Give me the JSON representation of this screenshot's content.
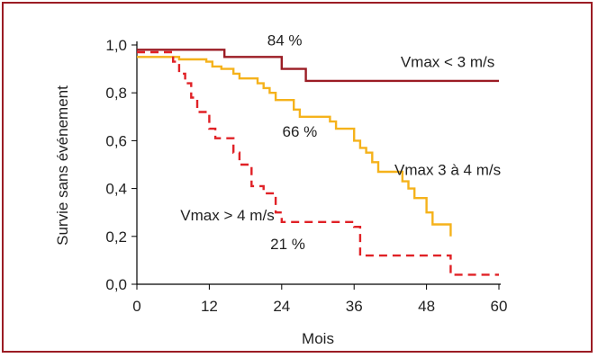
{
  "chart_data": {
    "type": "line",
    "title": "",
    "xlabel": "Mois",
    "ylabel": "Survie sans événement",
    "xlim": [
      0,
      60
    ],
    "ylim": [
      0,
      1.0
    ],
    "x_ticks": [
      0,
      12,
      24,
      36,
      48,
      60
    ],
    "y_ticks": [
      0.0,
      0.2,
      0.4,
      0.6,
      0.8,
      1.0
    ],
    "x_tick_labels": [
      "0",
      "12",
      "24",
      "36",
      "48",
      "60"
    ],
    "y_tick_labels": [
      "0,0",
      "0,2",
      "0,4",
      "0,6",
      "0,8",
      "1,0"
    ],
    "grid": false,
    "frame_color": "#9b1c24",
    "series": [
      {
        "name": "Vmax < 3 m/s",
        "color": "#9b1c24",
        "style": "solid",
        "steps": [
          [
            0,
            0.98
          ],
          [
            14.5,
            0.98
          ],
          [
            14.5,
            0.95
          ],
          [
            24,
            0.95
          ],
          [
            24,
            0.9
          ],
          [
            28,
            0.9
          ],
          [
            28,
            0.85
          ],
          [
            60,
            0.85
          ]
        ]
      },
      {
        "name": "Vmax 3 à 4 m/s",
        "color": "#f5b21b",
        "style": "solid",
        "steps": [
          [
            0,
            0.95
          ],
          [
            7,
            0.95
          ],
          [
            7,
            0.94
          ],
          [
            11.5,
            0.94
          ],
          [
            11.5,
            0.93
          ],
          [
            12.5,
            0.93
          ],
          [
            12.5,
            0.91
          ],
          [
            14,
            0.91
          ],
          [
            14,
            0.9
          ],
          [
            16,
            0.9
          ],
          [
            16,
            0.88
          ],
          [
            17,
            0.88
          ],
          [
            17,
            0.86
          ],
          [
            20,
            0.86
          ],
          [
            20,
            0.84
          ],
          [
            21,
            0.84
          ],
          [
            21,
            0.82
          ],
          [
            22,
            0.82
          ],
          [
            22,
            0.8
          ],
          [
            23,
            0.8
          ],
          [
            23,
            0.77
          ],
          [
            26,
            0.77
          ],
          [
            26,
            0.73
          ],
          [
            27,
            0.73
          ],
          [
            27,
            0.7
          ],
          [
            32,
            0.7
          ],
          [
            32,
            0.68
          ],
          [
            33,
            0.68
          ],
          [
            33,
            0.65
          ],
          [
            36,
            0.65
          ],
          [
            36,
            0.6
          ],
          [
            37,
            0.6
          ],
          [
            37,
            0.57
          ],
          [
            38,
            0.57
          ],
          [
            38,
            0.55
          ],
          [
            39,
            0.55
          ],
          [
            39,
            0.51
          ],
          [
            40,
            0.51
          ],
          [
            40,
            0.47
          ],
          [
            44,
            0.47
          ],
          [
            44,
            0.43
          ],
          [
            45,
            0.43
          ],
          [
            45,
            0.4
          ],
          [
            46,
            0.4
          ],
          [
            46,
            0.36
          ],
          [
            48,
            0.36
          ],
          [
            48,
            0.3
          ],
          [
            49,
            0.3
          ],
          [
            49,
            0.25
          ],
          [
            52,
            0.25
          ],
          [
            52,
            0.2
          ]
        ]
      },
      {
        "name": "Vmax > 4 m/s",
        "color": "#e02126",
        "style": "dashed",
        "steps": [
          [
            0,
            0.97
          ],
          [
            6,
            0.97
          ],
          [
            6,
            0.93
          ],
          [
            7,
            0.93
          ],
          [
            7,
            0.88
          ],
          [
            8,
            0.88
          ],
          [
            8,
            0.84
          ],
          [
            9,
            0.84
          ],
          [
            9,
            0.78
          ],
          [
            10,
            0.78
          ],
          [
            10,
            0.72
          ],
          [
            12,
            0.72
          ],
          [
            12,
            0.65
          ],
          [
            13,
            0.65
          ],
          [
            13,
            0.61
          ],
          [
            16,
            0.61
          ],
          [
            16,
            0.55
          ],
          [
            17,
            0.55
          ],
          [
            17,
            0.5
          ],
          [
            19,
            0.5
          ],
          [
            19,
            0.41
          ],
          [
            21,
            0.41
          ],
          [
            21,
            0.38
          ],
          [
            23,
            0.38
          ],
          [
            23,
            0.3
          ],
          [
            24,
            0.3
          ],
          [
            24,
            0.26
          ],
          [
            36,
            0.26
          ],
          [
            36,
            0.24
          ],
          [
            37,
            0.24
          ],
          [
            37,
            0.12
          ],
          [
            52,
            0.12
          ],
          [
            52,
            0.04
          ],
          [
            60,
            0.04
          ]
        ]
      }
    ],
    "annotations": [
      {
        "text": "84 %",
        "x": 24.5,
        "y": 1.02
      },
      {
        "text": "66 %",
        "x": 27,
        "y": 0.64
      },
      {
        "text": "21 %",
        "x": 25,
        "y": 0.17
      },
      {
        "text": "Vmax < 3 m/s",
        "x": 51.5,
        "y": 0.93
      },
      {
        "text": "Vmax 3 à 4 m/s",
        "x": 51.5,
        "y": 0.48
      },
      {
        "text": "Vmax > 4 m/s",
        "x": 15,
        "y": 0.29
      }
    ]
  }
}
